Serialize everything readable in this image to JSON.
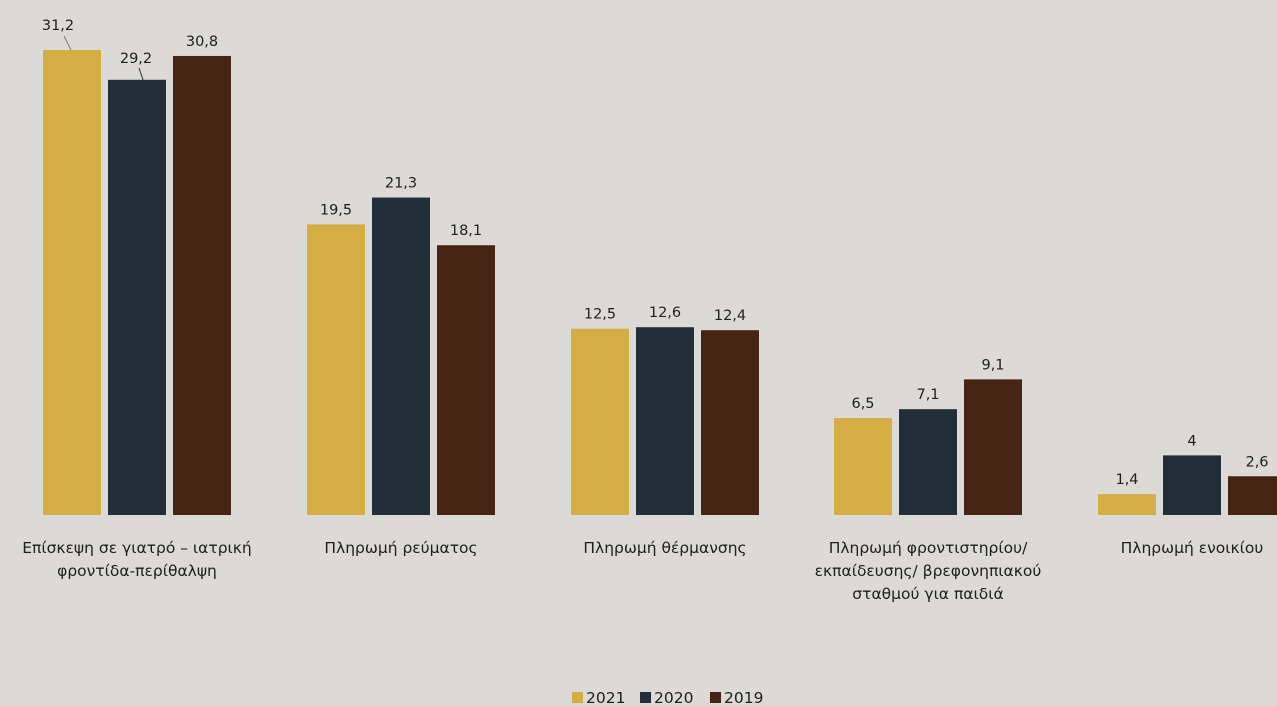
{
  "chart_data": {
    "type": "bar",
    "categories": [
      [
        "Επίσκεψη σε γιατρό – ιατρική",
        "φροντίδα-περίθαλψη"
      ],
      [
        "Πληρωμή ρεύματος"
      ],
      [
        "Πληρωμή θέρμανσης"
      ],
      [
        "Πληρωμή φροντιστηρίου/",
        "εκπαίδευσης/ βρεφονηπιακού",
        "σταθμού για παιδιά"
      ],
      [
        "Πληρωμή ενοικίου"
      ]
    ],
    "series": [
      {
        "name": "2021",
        "color": "#d4ad45",
        "values": [
          31.2,
          19.5,
          12.5,
          6.5,
          1.4
        ],
        "labels": [
          "31,2",
          "19,5",
          "12,5",
          "6,5",
          "1,4"
        ]
      },
      {
        "name": "2020",
        "color": "#222e38",
        "values": [
          29.2,
          21.3,
          12.6,
          7.1,
          4
        ],
        "labels": [
          "29,2",
          "21,3",
          "12,6",
          "7,1",
          "4"
        ]
      },
      {
        "name": "2019",
        "color": "#472515",
        "values": [
          30.8,
          18.1,
          12.4,
          9.1,
          2.6
        ],
        "labels": [
          "30,8",
          "18,1",
          "12,4",
          "9,1",
          "2,6"
        ]
      }
    ],
    "ylim": [
      0,
      31.2
    ],
    "grid": false,
    "legend_position": "bottom-center"
  }
}
